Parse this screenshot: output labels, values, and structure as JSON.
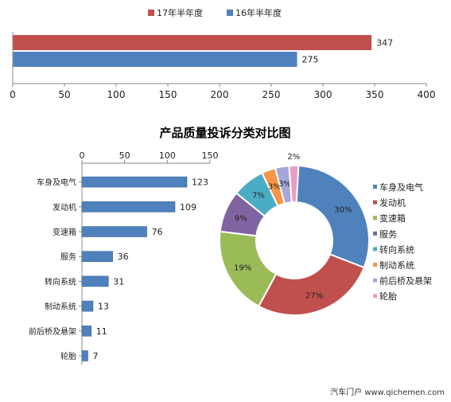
{
  "chart_data": [
    {
      "type": "bar",
      "orientation": "horizontal",
      "series": [
        {
          "name": "17年半年度",
          "color": "#C0504D",
          "values": [
            347
          ]
        },
        {
          "name": "16年半年度",
          "color": "#4F81BD",
          "values": [
            275
          ]
        }
      ],
      "xlim": [
        0,
        400
      ],
      "xticks": [
        0,
        50,
        100,
        150,
        200,
        250,
        300,
        350,
        400
      ],
      "legend_position": "top",
      "grid": false
    },
    {
      "type": "bar",
      "orientation": "horizontal",
      "title": "产品质量投诉分类对比图",
      "categories": [
        "车身及电气",
        "发动机",
        "变速箱",
        "服务",
        "转向系统",
        "制动系统",
        "前后桥及悬架",
        "轮胎"
      ],
      "values": [
        123,
        109,
        76,
        36,
        31,
        13,
        11,
        7
      ],
      "xlim": [
        0,
        150
      ],
      "xticks": [
        0,
        50,
        100,
        150
      ],
      "color": "#4F81BD",
      "grid": false
    },
    {
      "type": "pie",
      "style": "donut",
      "labels": [
        "车身及电气",
        "发动机",
        "变速箱",
        "服务",
        "转向系统",
        "制动系统",
        "前后桥及悬架",
        "轮胎"
      ],
      "values": [
        30,
        27,
        19,
        9,
        7,
        3,
        3,
        2
      ],
      "value_labels": [
        "30%",
        "27%",
        "19%",
        "9%",
        "7%",
        "3%",
        "3%",
        "2%"
      ],
      "colors": [
        "#4F81BD",
        "#C0504D",
        "#9BBB59",
        "#8064A2",
        "#4BACC6",
        "#F79646",
        "#A5A5D9",
        "#E6A0C4"
      ],
      "legend_position": "right"
    }
  ],
  "watermark": "汽车门户 www.qichemen.com"
}
